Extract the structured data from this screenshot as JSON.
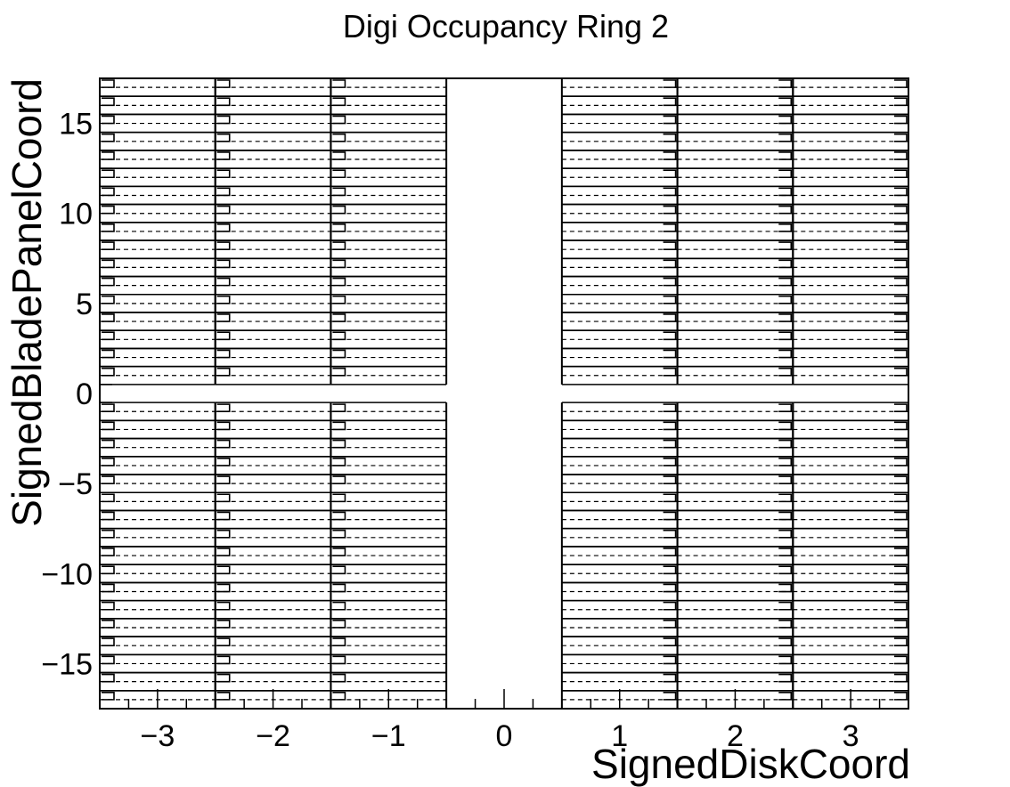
{
  "chart_data": {
    "type": "heatmap",
    "title": "Digi Occupancy Ring 2",
    "xlabel": "SignedDiskCoord",
    "ylabel": "SignedBladePanelCoord",
    "xlim": [
      -3.5,
      3.5
    ],
    "ylim": [
      -17.5,
      17.5
    ],
    "x_ticks": [
      -3,
      -2,
      -1,
      0,
      1,
      2,
      3
    ],
    "x_tick_labels": [
      "−3",
      "−2",
      "−1",
      "0",
      "1",
      "2",
      "3"
    ],
    "y_ticks": [
      -15,
      -10,
      -5,
      0,
      5,
      10,
      15
    ],
    "y_tick_labels": [
      "−15",
      "−10",
      "−5",
      "0",
      "5",
      "10",
      "15"
    ],
    "disks": [
      -3,
      -2,
      -1,
      1,
      2,
      3
    ],
    "blade_panel_rows": {
      "positive": [
        1,
        17
      ],
      "negative": [
        -17,
        -1
      ],
      "panels_per_row": 2
    },
    "empty_regions": [
      "SignedDiskCoord = 0",
      "SignedBladePanelCoord = 0"
    ],
    "grid": false,
    "legend": "none",
    "colors": {
      "background": "#ffffff",
      "ink": "#000000"
    }
  }
}
